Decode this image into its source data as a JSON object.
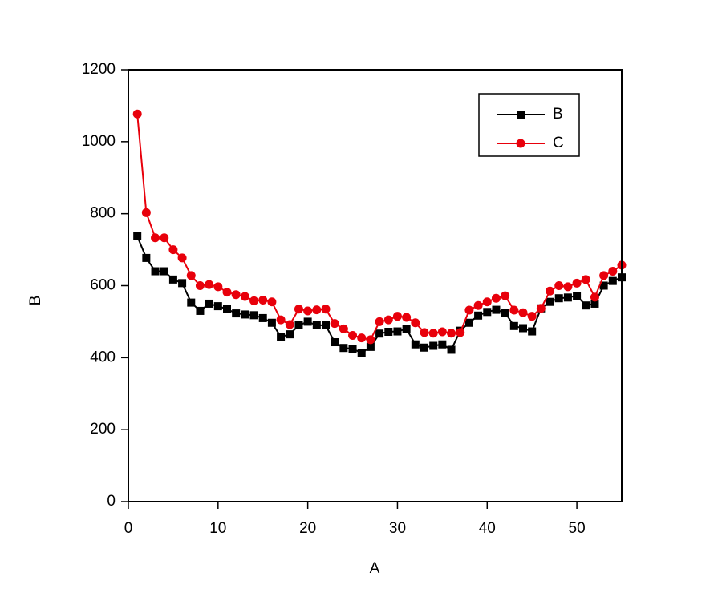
{
  "chart_data": {
    "type": "line",
    "xlabel": "A",
    "ylabel": "B",
    "x": [
      1,
      2,
      3,
      4,
      5,
      6,
      7,
      8,
      9,
      10,
      11,
      12,
      13,
      14,
      15,
      16,
      17,
      18,
      19,
      20,
      21,
      22,
      23,
      24,
      25,
      26,
      27,
      28,
      29,
      30,
      31,
      32,
      33,
      34,
      35,
      36,
      37,
      38,
      39,
      40,
      41,
      42,
      43,
      44,
      45,
      46,
      47,
      48,
      49,
      50,
      51,
      52,
      53,
      54,
      55
    ],
    "series": [
      {
        "name": "B",
        "color": "#000000",
        "marker": "square",
        "values": [
          737,
          677,
          640,
          640,
          617,
          607,
          553,
          530,
          550,
          543,
          535,
          523,
          520,
          518,
          510,
          497,
          458,
          465,
          490,
          500,
          490,
          490,
          443,
          427,
          425,
          413,
          430,
          467,
          472,
          473,
          480,
          437,
          428,
          433,
          437,
          422,
          475,
          497,
          517,
          527,
          533,
          525,
          488,
          482,
          473,
          537,
          555,
          565,
          567,
          572,
          545,
          550,
          600,
          613,
          623
        ]
      },
      {
        "name": "C",
        "color": "#e8000b",
        "marker": "circle",
        "values": [
          1077,
          803,
          733,
          733,
          700,
          677,
          628,
          600,
          603,
          597,
          582,
          575,
          570,
          558,
          560,
          555,
          505,
          492,
          535,
          530,
          533,
          535,
          495,
          480,
          462,
          455,
          450,
          500,
          505,
          515,
          512,
          497,
          470,
          468,
          472,
          468,
          470,
          532,
          545,
          555,
          565,
          572,
          532,
          525,
          515,
          537,
          585,
          600,
          597,
          607,
          617,
          568,
          628,
          640,
          657
        ]
      }
    ],
    "xlim": [
      0,
      55
    ],
    "ylim": [
      0,
      1200
    ],
    "xticks": [
      0,
      10,
      20,
      30,
      40,
      50
    ],
    "yticks": [
      0,
      200,
      400,
      600,
      800,
      1000,
      1200
    ],
    "legend": "top-right"
  }
}
